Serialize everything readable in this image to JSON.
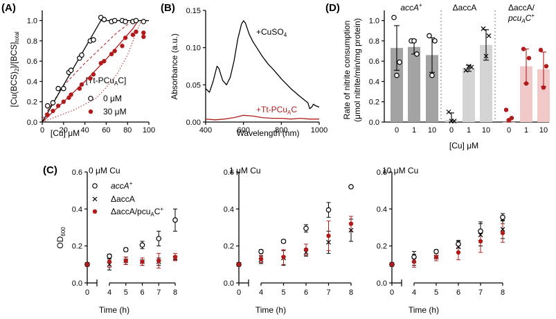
{
  "panels": {
    "A": "(A)",
    "B": "(B)",
    "C": "(C)",
    "D": "(D)"
  },
  "chart_data": [
    {
      "panel": "A",
      "type": "scatter",
      "xlabel": "[Cu] μM",
      "ylabel": "[Cu(BCS)2]/[BCS]total",
      "ylabel_parts": {
        "pre": "[Cu(BCS)",
        "sub": "2",
        "post": "]/[BCS]",
        "sub2": "total"
      },
      "xlim": [
        0,
        100
      ],
      "ylim": [
        0,
        1.1
      ],
      "xticks": [
        0,
        20,
        40,
        60,
        80,
        100
      ],
      "yticks": [
        0.0,
        0.2,
        0.4,
        0.6,
        0.8,
        1.0
      ],
      "legend": {
        "title": "[Tt-PCuAC]",
        "title_parts": {
          "pre": "[Tt-PCu",
          "sub": "A",
          "post": "C]"
        },
        "placement": "bottom-right"
      },
      "series": [
        {
          "name": "0 μM",
          "marker": "open-circle",
          "color": "#000000",
          "points": [
            [
              5,
              0.16
            ],
            [
              10,
              0.19
            ],
            [
              15,
              0.33
            ],
            [
              20,
              0.33
            ],
            [
              25,
              0.49
            ],
            [
              27,
              0.51
            ],
            [
              35,
              0.63
            ],
            [
              37,
              0.66
            ],
            [
              45,
              0.8
            ],
            [
              48,
              0.81
            ],
            [
              55,
              1.03
            ],
            [
              58,
              1.01
            ],
            [
              65,
              0.99
            ],
            [
              68,
              1.0
            ],
            [
              75,
              1.0
            ],
            [
              78,
              0.99
            ],
            [
              85,
              0.99
            ],
            [
              88,
              1.0
            ],
            [
              95,
              0.99
            ]
          ],
          "fit": [
            [
              0,
              0.0
            ],
            [
              55,
              1.0
            ],
            [
              100,
              1.0
            ]
          ]
        },
        {
          "name": "30 μM",
          "marker": "filled-circle",
          "color": "#b01c1c",
          "points": [
            [
              5,
              0.07
            ],
            [
              10,
              0.11
            ],
            [
              15,
              0.16
            ],
            [
              20,
              0.2
            ],
            [
              25,
              0.24
            ],
            [
              27,
              0.27
            ],
            [
              35,
              0.33
            ],
            [
              37,
              0.37
            ],
            [
              45,
              0.43
            ],
            [
              48,
              0.47
            ],
            [
              55,
              0.58
            ],
            [
              58,
              0.6
            ],
            [
              65,
              0.67
            ],
            [
              68,
              0.7
            ],
            [
              75,
              0.75
            ],
            [
              78,
              0.83
            ],
            [
              85,
              0.86
            ],
            [
              88,
              0.89
            ],
            [
              95,
              0.84
            ],
            [
              95,
              0.88
            ]
          ],
          "fit": [
            [
              0,
              0.0
            ],
            [
              20,
              0.2
            ],
            [
              40,
              0.4
            ],
            [
              60,
              0.62
            ],
            [
              75,
              0.8
            ],
            [
              85,
              0.92
            ],
            [
              90,
              1.0
            ],
            [
              100,
              1.0
            ]
          ],
          "ci_upper": [
            [
              0,
              0.03
            ],
            [
              20,
              0.36
            ],
            [
              40,
              0.58
            ],
            [
              55,
              0.73
            ],
            [
              70,
              0.88
            ],
            [
              80,
              0.96
            ],
            [
              85,
              1.0
            ]
          ],
          "ci_lower": [
            [
              0,
              0.0
            ],
            [
              30,
              0.12
            ],
            [
              50,
              0.23
            ],
            [
              60,
              0.34
            ],
            [
              70,
              0.47
            ],
            [
              80,
              0.66
            ],
            [
              88,
              0.88
            ],
            [
              93,
              1.0
            ]
          ]
        }
      ]
    },
    {
      "panel": "B",
      "type": "line",
      "xlabel": "Wavelength (nm)",
      "ylabel": "Absorbance (a.u.)",
      "xlim": [
        400,
        1000
      ],
      "ylim": [
        0,
        0.15
      ],
      "xticks": [
        400,
        600,
        800,
        1000
      ],
      "yticks": [
        0.0,
        0.05,
        0.1,
        0.15
      ],
      "series": [
        {
          "name": "+CuSO4",
          "label_parts": {
            "pre": "+CuSO",
            "sub": "4"
          },
          "color": "#000000",
          "points": [
            [
              400,
              0.045
            ],
            [
              420,
              0.04
            ],
            [
              440,
              0.055
            ],
            [
              460,
              0.075
            ],
            [
              470,
              0.072
            ],
            [
              490,
              0.056
            ],
            [
              510,
              0.05
            ],
            [
              530,
              0.06
            ],
            [
              550,
              0.082
            ],
            [
              570,
              0.112
            ],
            [
              590,
              0.132
            ],
            [
              600,
              0.136
            ],
            [
              610,
              0.133
            ],
            [
              630,
              0.118
            ],
            [
              650,
              0.108
            ],
            [
              670,
              0.1
            ],
            [
              700,
              0.088
            ],
            [
              730,
              0.078
            ],
            [
              760,
              0.07
            ],
            [
              800,
              0.058
            ],
            [
              850,
              0.045
            ],
            [
              900,
              0.034
            ],
            [
              920,
              0.03
            ],
            [
              940,
              0.026
            ],
            [
              950,
              0.018
            ],
            [
              960,
              0.02
            ],
            [
              970,
              0.024
            ],
            [
              980,
              0.022
            ],
            [
              1000,
              0.02
            ]
          ]
        },
        {
          "name": "+Tt-PCuAC",
          "label_parts": {
            "pre": "+Tt-PCu",
            "sub": "A",
            "post": "C"
          },
          "color": "#b01c1c",
          "points": [
            [
              400,
              0.004
            ],
            [
              450,
              0.003
            ],
            [
              500,
              0.004
            ],
            [
              550,
              0.006
            ],
            [
              600,
              0.009
            ],
            [
              650,
              0.008
            ],
            [
              700,
              0.006
            ],
            [
              750,
              0.005
            ],
            [
              800,
              0.005
            ],
            [
              850,
              0.004
            ],
            [
              900,
              0.005
            ],
            [
              950,
              0.004
            ],
            [
              1000,
              0.004
            ]
          ]
        }
      ]
    },
    {
      "panel": "D",
      "type": "bar",
      "ylabel_line1": "Rate of nitrite consumption",
      "ylabel_line2": "(μmol nitrite/min/mg protein)",
      "xlabel": "[Cu] μM",
      "ylim": [
        0,
        1.1
      ],
      "yticks": [
        0.0,
        0.2,
        0.4,
        0.6,
        0.8,
        1.0
      ],
      "groups": [
        {
          "name": "accA+",
          "label": "accA",
          "sup": "+",
          "color": "#a3a3a3",
          "marker": "open-circle",
          "categories": [
            "0",
            "1",
            "10"
          ],
          "values": [
            0.73,
            0.74,
            0.66
          ],
          "errors": [
            0.22,
            0.07,
            0.17
          ],
          "points": [
            [
              1.03,
              0.59,
              0.46
            ],
            [
              0.8,
              0.67,
              0.8
            ],
            [
              0.85,
              0.8,
              0.46
            ]
          ]
        },
        {
          "name": "ΔaccA",
          "label": "ΔaccA",
          "sup": "",
          "color": "#d4d4d4",
          "marker": "cross",
          "categories": [
            "0",
            "1",
            "10"
          ],
          "values": [
            0.02,
            0.53,
            0.76
          ],
          "errors": [
            0.07,
            0.03,
            0.15
          ],
          "points": [
            [
              0.1,
              0.01,
              0.01
            ],
            [
              0.51,
              0.54,
              0.55
            ],
            [
              0.92,
              0.85,
              0.65
            ]
          ]
        },
        {
          "name": "ΔaccA/pcuAC+",
          "label_line1": "ΔaccA/",
          "label_line2": "pcu",
          "label_sub": "A",
          "label_post": "C",
          "sup": "+",
          "color": "#f2c9c9",
          "marker": "filled-circle",
          "point_color": "#b01c1c",
          "categories": [
            "0",
            "1",
            "10"
          ],
          "values": [
            0.0,
            0.55,
            0.52
          ],
          "errors": [
            0.02,
            0.17,
            0.17
          ],
          "points": [
            [
              0.12,
              0.04,
              0.02
            ],
            [
              0.72,
              0.63,
              0.38
            ],
            [
              0.71,
              0.55,
              0.34
            ]
          ]
        }
      ]
    },
    {
      "panel": "C",
      "type": "scatter",
      "ylabel": "OD600",
      "ylabel_parts": {
        "pre": "OD",
        "sub": "600"
      },
      "xlabel": "Time (h)",
      "ylim": [
        0,
        0.6
      ],
      "yticks": [
        0.0,
        0.2,
        0.4,
        0.6
      ],
      "xticks": [
        0,
        4,
        5,
        6,
        7,
        8
      ],
      "legend": [
        {
          "label": "accA",
          "sup": "+",
          "marker": "open-circle"
        },
        {
          "label": "ΔaccA",
          "sup": "",
          "marker": "cross"
        },
        {
          "label": "ΔaccA/pcu",
          "sub": "A",
          "post": "C",
          "sup": "+",
          "marker": "filled-circle"
        }
      ],
      "subplots": [
        {
          "title": "0 μM Cu",
          "series": [
            {
              "name": "accA+",
              "marker": "open-circle",
              "color": "#000000",
              "x": [
                0,
                4,
                5,
                6,
                7,
                8
              ],
              "y": [
                0.1,
                0.145,
                0.18,
                0.205,
                0.24,
                0.34
              ],
              "err": [
                0,
                0.01,
                0.01,
                0.02,
                0.04,
                0.06
              ]
            },
            {
              "name": "ΔaccA",
              "marker": "cross",
              "color": "#000000",
              "x": [
                0,
                4,
                5,
                6,
                7,
                8
              ],
              "y": [
                0.1,
                0.1,
                0.12,
                0.115,
                0.115,
                0.135
              ],
              "err": [
                0,
                0.03,
                0.02,
                0.02,
                0.02,
                0.01
              ]
            },
            {
              "name": "ΔaccA/pcuAC+",
              "marker": "filled-circle",
              "color": "#b01c1c",
              "x": [
                0,
                4,
                5,
                6,
                7,
                8
              ],
              "y": [
                0.1,
                0.115,
                0.12,
                0.115,
                0.12,
                0.14
              ],
              "err": [
                0,
                0.03,
                0.02,
                0.02,
                0.04,
                0.02
              ]
            }
          ]
        },
        {
          "title": "1 μM Cu",
          "series": [
            {
              "name": "accA+",
              "marker": "open-circle",
              "color": "#000000",
              "x": [
                0,
                4,
                5,
                6,
                7,
                8
              ],
              "y": [
                0.1,
                0.17,
                0.225,
                0.295,
                0.395,
                0.52
              ],
              "err": [
                0,
                0.01,
                0.01,
                0.02,
                0.04,
                0.0
              ]
            },
            {
              "name": "ΔaccA",
              "marker": "cross",
              "color": "#000000",
              "x": [
                0,
                4,
                5,
                6,
                7,
                8
              ],
              "y": [
                0.1,
                0.125,
                0.135,
                0.165,
                0.22,
                0.285
              ],
              "err": [
                0,
                0.02,
                0.04,
                0.02,
                0.06,
                0.06
              ]
            },
            {
              "name": "ΔaccA/pcuAC+",
              "marker": "filled-circle",
              "color": "#b01c1c",
              "x": [
                0,
                4,
                5,
                6,
                7,
                8
              ],
              "y": [
                0.1,
                0.13,
                0.14,
                0.18,
                0.255,
                0.32
              ],
              "err": [
                0,
                0.02,
                0.04,
                0.03,
                0.08,
                0.04
              ]
            }
          ]
        },
        {
          "title": "10 μM Cu",
          "series": [
            {
              "name": "accA+",
              "marker": "open-circle",
              "color": "#000000",
              "x": [
                0,
                4,
                5,
                6,
                7,
                8
              ],
              "y": [
                0.1,
                0.14,
                0.17,
                0.21,
                0.28,
                0.355
              ],
              "err": [
                0,
                0.03,
                0.01,
                0.02,
                0.05,
                0.02
              ]
            },
            {
              "name": "ΔaccA",
              "marker": "cross",
              "color": "#000000",
              "x": [
                0,
                4,
                5,
                6,
                7,
                8
              ],
              "y": [
                0.1,
                0.125,
                0.14,
                0.195,
                0.26,
                0.29
              ],
              "err": [
                0,
                0.03,
                0.02,
                0.03,
                0.06,
                0.05
              ]
            },
            {
              "name": "ΔaccA/pcuAC+",
              "marker": "filled-circle",
              "color": "#b01c1c",
              "x": [
                0,
                4,
                5,
                6,
                7,
                8
              ],
              "y": [
                0.1,
                0.115,
                0.14,
                0.165,
                0.225,
                0.27
              ],
              "err": [
                0,
                0.03,
                0.02,
                0.04,
                0.06,
                0.05
              ]
            }
          ]
        }
      ]
    }
  ]
}
